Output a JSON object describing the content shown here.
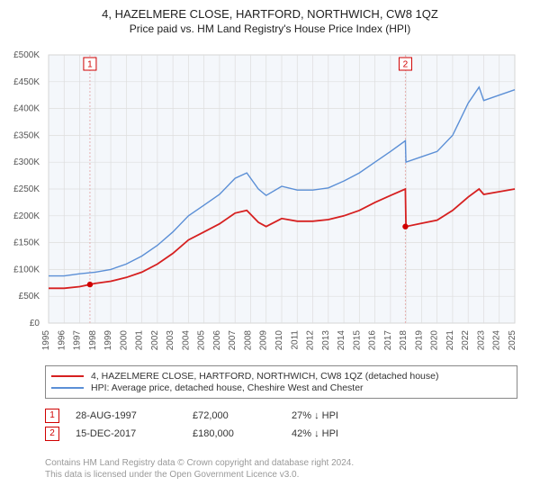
{
  "title": {
    "main": "4, HAZELMERE CLOSE, HARTFORD, NORTHWICH, CW8 1QZ",
    "sub": "Price paid vs. HM Land Registry's House Price Index (HPI)"
  },
  "chart": {
    "type": "line",
    "background_color": "#f4f7fb",
    "grid_color": "#dddddd",
    "axis_text_color": "#555555",
    "axis_font_size": 10,
    "x_years": [
      "1995",
      "1996",
      "1997",
      "1998",
      "1999",
      "2000",
      "2001",
      "2002",
      "2003",
      "2004",
      "2005",
      "2006",
      "2007",
      "2008",
      "2009",
      "2010",
      "2011",
      "2012",
      "2013",
      "2014",
      "2015",
      "2016",
      "2017",
      "2018",
      "2019",
      "2020",
      "2021",
      "2022",
      "2023",
      "2024",
      "2025"
    ],
    "y_ticks": [
      0,
      50000,
      100000,
      150000,
      200000,
      250000,
      300000,
      350000,
      400000,
      450000,
      500000
    ],
    "y_tick_labels": [
      "£0",
      "£50K",
      "£100K",
      "£150K",
      "£200K",
      "£250K",
      "£300K",
      "£350K",
      "£400K",
      "£450K",
      "£500K"
    ],
    "ylim": [
      0,
      500000
    ],
    "series": [
      {
        "name": "hpi",
        "color": "#5b8fd6",
        "width": 1.4,
        "data": [
          [
            1995,
            88000
          ],
          [
            1996,
            88000
          ],
          [
            1997,
            92000
          ],
          [
            1998,
            95000
          ],
          [
            1999,
            100000
          ],
          [
            2000,
            110000
          ],
          [
            2001,
            125000
          ],
          [
            2002,
            145000
          ],
          [
            2003,
            170000
          ],
          [
            2004,
            200000
          ],
          [
            2005,
            220000
          ],
          [
            2006,
            240000
          ],
          [
            2007,
            270000
          ],
          [
            2007.75,
            280000
          ],
          [
            2008.5,
            250000
          ],
          [
            2009,
            238000
          ],
          [
            2010,
            255000
          ],
          [
            2011,
            248000
          ],
          [
            2012,
            248000
          ],
          [
            2013,
            252000
          ],
          [
            2014,
            265000
          ],
          [
            2015,
            280000
          ],
          [
            2016,
            300000
          ],
          [
            2017,
            320000
          ],
          [
            2017.96,
            340000
          ],
          [
            2018,
            300000
          ],
          [
            2019,
            310000
          ],
          [
            2020,
            320000
          ],
          [
            2021,
            350000
          ],
          [
            2022,
            410000
          ],
          [
            2022.7,
            440000
          ],
          [
            2023,
            415000
          ],
          [
            2024,
            425000
          ],
          [
            2025,
            435000
          ]
        ]
      },
      {
        "name": "property",
        "color": "#d62020",
        "width": 1.8,
        "data": [
          [
            1995,
            65000
          ],
          [
            1996,
            65000
          ],
          [
            1997,
            68000
          ],
          [
            1997.66,
            72000
          ],
          [
            1998,
            74000
          ],
          [
            1999,
            78000
          ],
          [
            2000,
            85000
          ],
          [
            2001,
            95000
          ],
          [
            2002,
            110000
          ],
          [
            2003,
            130000
          ],
          [
            2004,
            155000
          ],
          [
            2005,
            170000
          ],
          [
            2006,
            185000
          ],
          [
            2007,
            205000
          ],
          [
            2007.75,
            210000
          ],
          [
            2008.5,
            188000
          ],
          [
            2009,
            180000
          ],
          [
            2010,
            195000
          ],
          [
            2011,
            190000
          ],
          [
            2012,
            190000
          ],
          [
            2013,
            193000
          ],
          [
            2014,
            200000
          ],
          [
            2015,
            210000
          ],
          [
            2016,
            225000
          ],
          [
            2017,
            238000
          ],
          [
            2017.96,
            250000
          ],
          [
            2018,
            180000
          ],
          [
            2019,
            186000
          ],
          [
            2020,
            192000
          ],
          [
            2021,
            210000
          ],
          [
            2022,
            235000
          ],
          [
            2022.7,
            250000
          ],
          [
            2023,
            240000
          ],
          [
            2024,
            245000
          ],
          [
            2025,
            250000
          ]
        ]
      }
    ],
    "markers": [
      {
        "label": "1",
        "x": 1997.66,
        "y": 72000,
        "box_color": "#d00000",
        "vline_color": "#e6b0b0"
      },
      {
        "label": "2",
        "x": 2017.96,
        "y": 180000,
        "box_color": "#d00000",
        "vline_color": "#e6b0b0"
      }
    ]
  },
  "legend": {
    "items": [
      {
        "color": "#d62020",
        "label": "4, HAZELMERE CLOSE, HARTFORD, NORTHWICH, CW8 1QZ (detached house)"
      },
      {
        "color": "#5b8fd6",
        "label": "HPI: Average price, detached house, Cheshire West and Chester"
      }
    ]
  },
  "marker_table": [
    {
      "num": "1",
      "date": "28-AUG-1997",
      "price": "£72,000",
      "delta": "27% ↓ HPI"
    },
    {
      "num": "2",
      "date": "15-DEC-2017",
      "price": "£180,000",
      "delta": "42% ↓ HPI"
    }
  ],
  "footer": {
    "line1": "Contains HM Land Registry data © Crown copyright and database right 2024.",
    "line2": "This data is licensed under the Open Government Licence v3.0."
  }
}
